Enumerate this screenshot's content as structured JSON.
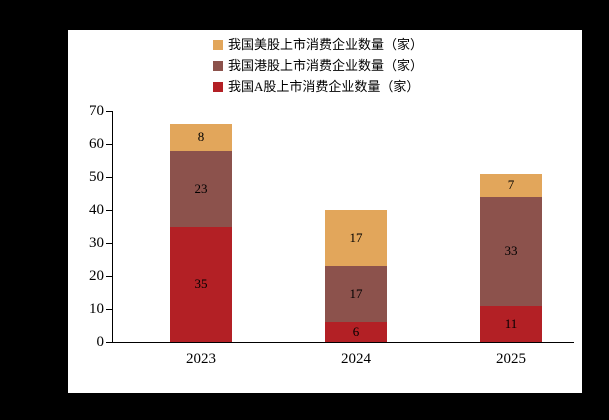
{
  "chart_data": {
    "type": "bar",
    "stacked": true,
    "title": "",
    "xlabel": "",
    "ylabel": "",
    "categories": [
      "2023",
      "2024",
      "2025"
    ],
    "series": [
      {
        "name": "我国A股上市消费企业数量（家）",
        "color": "#b2ттт",
        "values": [
          35,
          6,
          11
        ]
      },
      {
        "name": "我国港股上市消费企业数量（家）",
        "color": "#8c524c",
        "values": [
          23,
          17,
          33
        ]
      },
      {
        "name": "我国美股上市消费企业数量（家）",
        "color": "#e2a65b",
        "values": [
          8,
          17,
          7
        ]
      }
    ],
    "ylim": [
      0,
      70
    ],
    "yticks": [
      0,
      10,
      20,
      30,
      40,
      50,
      60,
      70
    ],
    "grid": false,
    "legend_position": "top",
    "background_color": "#ffffff",
    "page_background_color": "#000000",
    "axis_color": "#000000",
    "bar_colors": {
      "a_share": "#b32025",
      "hk_share": "#8c524c",
      "us_share": "#e2a65b"
    }
  }
}
